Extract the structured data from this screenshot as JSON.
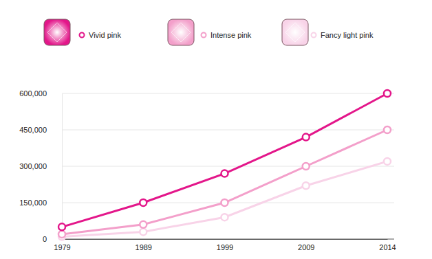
{
  "chart_data": {
    "type": "line",
    "categories": [
      "1979",
      "1989",
      "1999",
      "2009",
      "2014"
    ],
    "series": [
      {
        "name": "Vivid pink",
        "color": "#e3168a",
        "marker": "circle",
        "values": [
          50000,
          150000,
          270000,
          420000,
          600000
        ]
      },
      {
        "name": "Intense pink",
        "color": "#f39fca",
        "marker": "circle",
        "values": [
          20000,
          60000,
          150000,
          300000,
          450000
        ]
      },
      {
        "name": "Fancy light pink",
        "color": "#f8d3e8",
        "marker": "circle",
        "values": [
          10000,
          30000,
          90000,
          220000,
          320000
        ]
      }
    ],
    "ylim": [
      0,
      600000
    ],
    "yticks": [
      0,
      {
        "value": 150000,
        "label": "150,000"
      },
      {
        "value": 300000,
        "label": "300,000"
      },
      {
        "value": 450000,
        "label": "450,000"
      },
      {
        "value": 600000,
        "label": "600,000"
      }
    ],
    "grid": true,
    "legend": "top"
  }
}
